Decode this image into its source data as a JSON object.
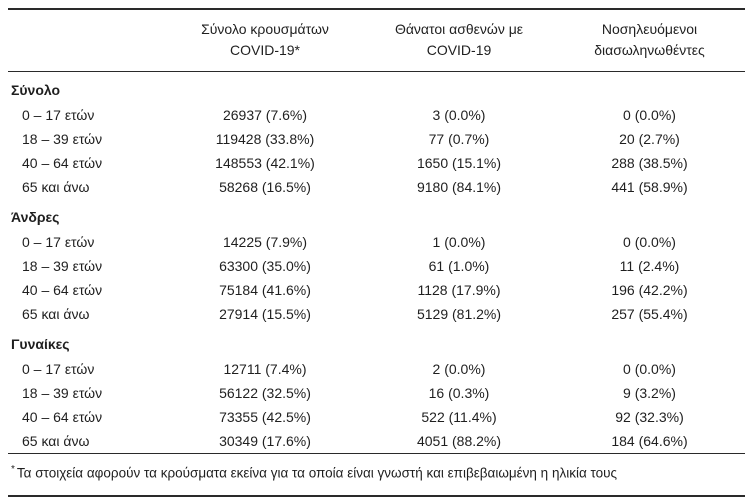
{
  "table": {
    "col_headers": [
      {
        "line1": "Σύνολο κρουσμάτων",
        "line2": "COVID-19*"
      },
      {
        "line1": "Θάνατοι ασθενών με",
        "line2": "COVID-19"
      },
      {
        "line1": "Νοσηλευόμενοι",
        "line2": "διασωληνωθέντες"
      }
    ],
    "sections": [
      {
        "label": "Σύνολο",
        "rows": [
          {
            "label": "0 – 17 ετών",
            "cases": "26937 (7.6%)",
            "deaths": "3 (0.0%)",
            "intubated": "0 (0.0%)"
          },
          {
            "label": "18 – 39 ετών",
            "cases": "119428 (33.8%)",
            "deaths": "77 (0.7%)",
            "intubated": "20 (2.7%)"
          },
          {
            "label": "40 – 64 ετών",
            "cases": "148553 (42.1%)",
            "deaths": "1650 (15.1%)",
            "intubated": "288 (38.5%)"
          },
          {
            "label": "65 και άνω",
            "cases": "58268 (16.5%)",
            "deaths": "9180 (84.1%)",
            "intubated": "441 (58.9%)"
          }
        ]
      },
      {
        "label": "Άνδρες",
        "rows": [
          {
            "label": "0 – 17 ετών",
            "cases": "14225 (7.9%)",
            "deaths": "1 (0.0%)",
            "intubated": "0 (0.0%)"
          },
          {
            "label": "18 – 39 ετών",
            "cases": "63300 (35.0%)",
            "deaths": "61 (1.0%)",
            "intubated": "11 (2.4%)"
          },
          {
            "label": "40 – 64 ετών",
            "cases": "75184 (41.6%)",
            "deaths": "1128 (17.9%)",
            "intubated": "196 (42.2%)"
          },
          {
            "label": "65 και άνω",
            "cases": "27914 (15.5%)",
            "deaths": "5129 (81.2%)",
            "intubated": "257 (55.4%)"
          }
        ]
      },
      {
        "label": "Γυναίκες",
        "rows": [
          {
            "label": "0 – 17 ετών",
            "cases": "12711 (7.4%)",
            "deaths": "2 (0.0%)",
            "intubated": "0 (0.0%)"
          },
          {
            "label": "18 – 39 ετών",
            "cases": "56122 (32.5%)",
            "deaths": "16 (0.3%)",
            "intubated": "9 (3.2%)"
          },
          {
            "label": "40 – 64 ετών",
            "cases": "73355 (42.5%)",
            "deaths": "522 (11.4%)",
            "intubated": "92 (32.3%)"
          },
          {
            "label": "65 και άνω",
            "cases": "30349 (17.6%)",
            "deaths": "4051 (88.2%)",
            "intubated": "184 (64.6%)"
          }
        ]
      }
    ],
    "footnote_marker": "*",
    "footnote_text": "Τα στοιχεία αφορούν τα κρούσματα εκείνα για τα οποία είναι γνωστή και επιβεβαιωμένη η ηλικία τους"
  }
}
